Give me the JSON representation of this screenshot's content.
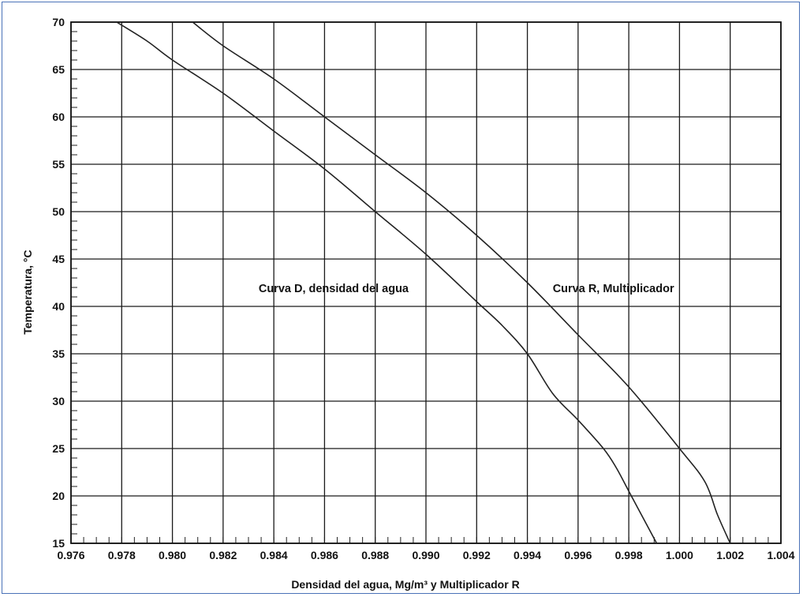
{
  "chart_data": {
    "type": "line",
    "xlabel": "Densidad del agua, Mg/m³ y Multiplicador R",
    "ylabel": "Temperatura, °C",
    "xlim": [
      0.976,
      1.004
    ],
    "ylim": [
      15,
      70
    ],
    "x_ticks": [
      0.976,
      0.978,
      0.98,
      0.982,
      0.984,
      0.986,
      0.988,
      0.99,
      0.992,
      0.994,
      0.996,
      0.998,
      1.0,
      1.002,
      1.004
    ],
    "x_tick_labels": [
      "0.976",
      "0.978",
      "0.980",
      "0.982",
      "0.984",
      "0.986",
      "0.988",
      "0.990",
      "0.992",
      "0.994",
      "0.996",
      "0.998",
      "1.000",
      "1.002",
      "1.004"
    ],
    "y_ticks": [
      15,
      20,
      25,
      30,
      35,
      40,
      45,
      50,
      55,
      60,
      65,
      70
    ],
    "y_tick_labels": [
      "15",
      "20",
      "25",
      "30",
      "35",
      "40",
      "45",
      "50",
      "55",
      "60",
      "65",
      "70"
    ],
    "grid": true,
    "minor_ticks": true,
    "series": [
      {
        "name": "Curva D, densidad del agua",
        "color": "#222222",
        "points": [
          [
            0.9991,
            15
          ],
          [
            0.9985,
            18
          ],
          [
            0.998,
            20.5
          ],
          [
            0.9975,
            23
          ],
          [
            0.997,
            25
          ],
          [
            0.996,
            28
          ],
          [
            0.995,
            30.8
          ],
          [
            0.994,
            35
          ],
          [
            0.993,
            38
          ],
          [
            0.992,
            40.5
          ],
          [
            0.99,
            45.5
          ],
          [
            0.988,
            50
          ],
          [
            0.986,
            54.5
          ],
          [
            0.984,
            58.5
          ],
          [
            0.982,
            62.5
          ],
          [
            0.98,
            66
          ],
          [
            0.979,
            68
          ],
          [
            0.9778,
            70
          ]
        ]
      },
      {
        "name": "Curva R, Multiplicador",
        "color": "#222222",
        "points": [
          [
            1.002,
            15
          ],
          [
            1.0015,
            18
          ],
          [
            1.001,
            21.5
          ],
          [
            1.0,
            25
          ],
          [
            0.998,
            31.5
          ],
          [
            0.996,
            37
          ],
          [
            0.994,
            42.5
          ],
          [
            0.992,
            47.5
          ],
          [
            0.99,
            52
          ],
          [
            0.988,
            56
          ],
          [
            0.986,
            60
          ],
          [
            0.984,
            64
          ],
          [
            0.982,
            67.5
          ],
          [
            0.9808,
            70
          ]
        ]
      }
    ],
    "annotations": [
      {
        "text": "Curva D, densidad del agua",
        "x": 0.9834,
        "y": 41.5
      },
      {
        "text": "Curva R, Multiplicador",
        "x": 0.995,
        "y": 41.5
      }
    ]
  }
}
